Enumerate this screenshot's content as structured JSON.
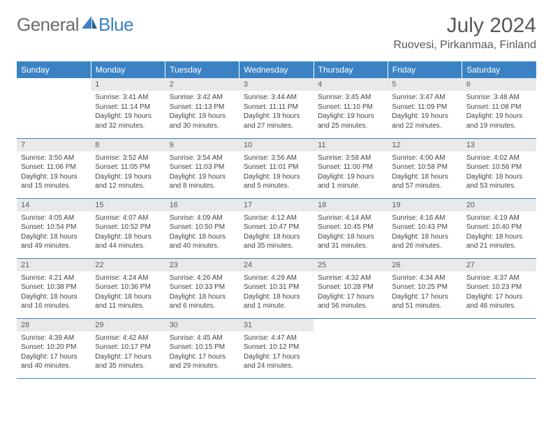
{
  "logo": {
    "general": "General",
    "blue": "Blue"
  },
  "title": "July 2024",
  "location": "Ruovesi, Pirkanmaa, Finland",
  "colors": {
    "brand": "#3b82c4",
    "headerBg": "#3b82c4",
    "dayNumBg": "#e9e9e9",
    "text": "#444444",
    "title": "#585858"
  },
  "weekdays": [
    "Sunday",
    "Monday",
    "Tuesday",
    "Wednesday",
    "Thursday",
    "Friday",
    "Saturday"
  ],
  "startOffset": 1,
  "days": [
    {
      "n": "1",
      "sr": "3:41 AM",
      "ss": "11:14 PM",
      "dl": "19 hours and 32 minutes."
    },
    {
      "n": "2",
      "sr": "3:42 AM",
      "ss": "11:13 PM",
      "dl": "19 hours and 30 minutes."
    },
    {
      "n": "3",
      "sr": "3:44 AM",
      "ss": "11:11 PM",
      "dl": "19 hours and 27 minutes."
    },
    {
      "n": "4",
      "sr": "3:45 AM",
      "ss": "11:10 PM",
      "dl": "19 hours and 25 minutes."
    },
    {
      "n": "5",
      "sr": "3:47 AM",
      "ss": "11:09 PM",
      "dl": "19 hours and 22 minutes."
    },
    {
      "n": "6",
      "sr": "3:48 AM",
      "ss": "11:08 PM",
      "dl": "19 hours and 19 minutes."
    },
    {
      "n": "7",
      "sr": "3:50 AM",
      "ss": "11:06 PM",
      "dl": "19 hours and 15 minutes."
    },
    {
      "n": "8",
      "sr": "3:52 AM",
      "ss": "11:05 PM",
      "dl": "19 hours and 12 minutes."
    },
    {
      "n": "9",
      "sr": "3:54 AM",
      "ss": "11:03 PM",
      "dl": "19 hours and 8 minutes."
    },
    {
      "n": "10",
      "sr": "3:56 AM",
      "ss": "11:01 PM",
      "dl": "19 hours and 5 minutes."
    },
    {
      "n": "11",
      "sr": "3:58 AM",
      "ss": "11:00 PM",
      "dl": "19 hours and 1 minute."
    },
    {
      "n": "12",
      "sr": "4:00 AM",
      "ss": "10:58 PM",
      "dl": "18 hours and 57 minutes."
    },
    {
      "n": "13",
      "sr": "4:02 AM",
      "ss": "10:56 PM",
      "dl": "18 hours and 53 minutes."
    },
    {
      "n": "14",
      "sr": "4:05 AM",
      "ss": "10:54 PM",
      "dl": "18 hours and 49 minutes."
    },
    {
      "n": "15",
      "sr": "4:07 AM",
      "ss": "10:52 PM",
      "dl": "18 hours and 44 minutes."
    },
    {
      "n": "16",
      "sr": "4:09 AM",
      "ss": "10:50 PM",
      "dl": "18 hours and 40 minutes."
    },
    {
      "n": "17",
      "sr": "4:12 AM",
      "ss": "10:47 PM",
      "dl": "18 hours and 35 minutes."
    },
    {
      "n": "18",
      "sr": "4:14 AM",
      "ss": "10:45 PM",
      "dl": "18 hours and 31 minutes."
    },
    {
      "n": "19",
      "sr": "4:16 AM",
      "ss": "10:43 PM",
      "dl": "18 hours and 26 minutes."
    },
    {
      "n": "20",
      "sr": "4:19 AM",
      "ss": "10:40 PM",
      "dl": "18 hours and 21 minutes."
    },
    {
      "n": "21",
      "sr": "4:21 AM",
      "ss": "10:38 PM",
      "dl": "18 hours and 16 minutes."
    },
    {
      "n": "22",
      "sr": "4:24 AM",
      "ss": "10:36 PM",
      "dl": "18 hours and 11 minutes."
    },
    {
      "n": "23",
      "sr": "4:26 AM",
      "ss": "10:33 PM",
      "dl": "18 hours and 6 minutes."
    },
    {
      "n": "24",
      "sr": "4:29 AM",
      "ss": "10:31 PM",
      "dl": "18 hours and 1 minute."
    },
    {
      "n": "25",
      "sr": "4:32 AM",
      "ss": "10:28 PM",
      "dl": "17 hours and 56 minutes."
    },
    {
      "n": "26",
      "sr": "4:34 AM",
      "ss": "10:25 PM",
      "dl": "17 hours and 51 minutes."
    },
    {
      "n": "27",
      "sr": "4:37 AM",
      "ss": "10:23 PM",
      "dl": "17 hours and 46 minutes."
    },
    {
      "n": "28",
      "sr": "4:39 AM",
      "ss": "10:20 PM",
      "dl": "17 hours and 40 minutes."
    },
    {
      "n": "29",
      "sr": "4:42 AM",
      "ss": "10:17 PM",
      "dl": "17 hours and 35 minutes."
    },
    {
      "n": "30",
      "sr": "4:45 AM",
      "ss": "10:15 PM",
      "dl": "17 hours and 29 minutes."
    },
    {
      "n": "31",
      "sr": "4:47 AM",
      "ss": "10:12 PM",
      "dl": "17 hours and 24 minutes."
    }
  ],
  "labels": {
    "sunrise": "Sunrise:",
    "sunset": "Sunset:",
    "daylight": "Daylight:"
  }
}
